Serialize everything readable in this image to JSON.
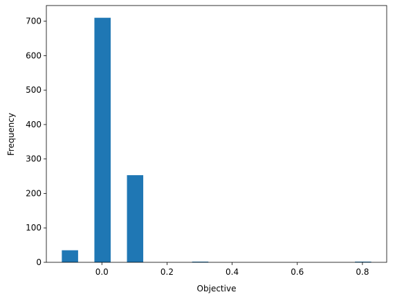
{
  "chart_data": {
    "type": "histogram",
    "x_label": "Objective",
    "y_label": "Frequency",
    "bins": [
      -0.123,
      -0.073,
      -0.023,
      0.027,
      0.077,
      0.127,
      0.177,
      0.227,
      0.277,
      0.327,
      0.377,
      0.427,
      0.477,
      0.527,
      0.577,
      0.627,
      0.677,
      0.727,
      0.777,
      0.827
    ],
    "values": [
      35,
      0,
      710,
      0,
      253,
      0,
      0,
      0,
      2,
      0,
      0,
      0,
      0,
      0,
      0,
      0,
      0,
      0,
      2
    ],
    "color": "#1f77b4",
    "xlim": [
      -0.1705,
      0.8745
    ],
    "xticks": [
      {
        "value": 0,
        "label": "0.0"
      },
      0.2,
      0.4,
      0.6,
      0.8
    ],
    "ylim": [
      0,
      745.5
    ],
    "yticks": [
      0,
      100,
      200,
      300,
      400,
      500,
      600,
      700
    ]
  }
}
